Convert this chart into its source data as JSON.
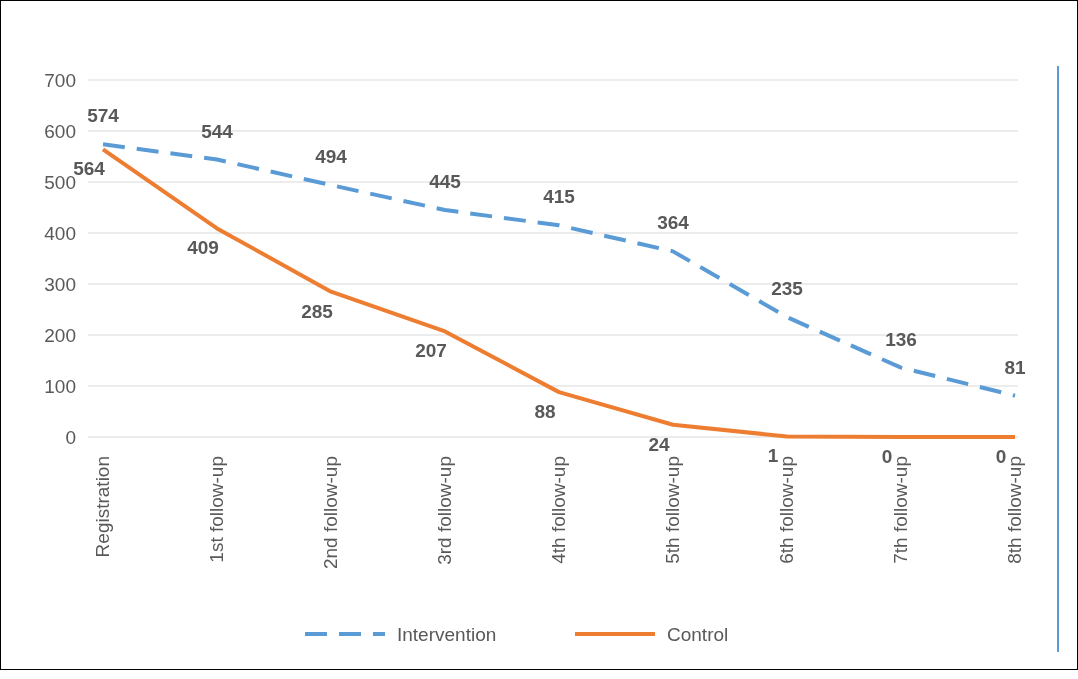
{
  "chart_data": {
    "type": "line",
    "categories": [
      "Registration",
      "1st follow-up",
      "2nd follow-up",
      "3rd follow-up",
      "4th follow-up",
      "5th follow-up",
      "6th follow-up",
      "7th follow-up",
      "8th follow-up"
    ],
    "series": [
      {
        "name": "Intervention",
        "color": "#5b9bd5",
        "line_style": "dashed",
        "values": [
          574,
          544,
          494,
          445,
          415,
          364,
          235,
          136,
          81
        ]
      },
      {
        "name": "Control",
        "color": "#ed7d31",
        "line_style": "solid",
        "values": [
          564,
          409,
          285,
          207,
          88,
          24,
          1,
          0,
          0
        ]
      }
    ],
    "ylim": [
      0,
      700
    ],
    "yticks": [
      0,
      100,
      200,
      300,
      400,
      500,
      600,
      700
    ],
    "grid": "y",
    "legend": "bottom",
    "data_labels": true,
    "marker": "none"
  }
}
